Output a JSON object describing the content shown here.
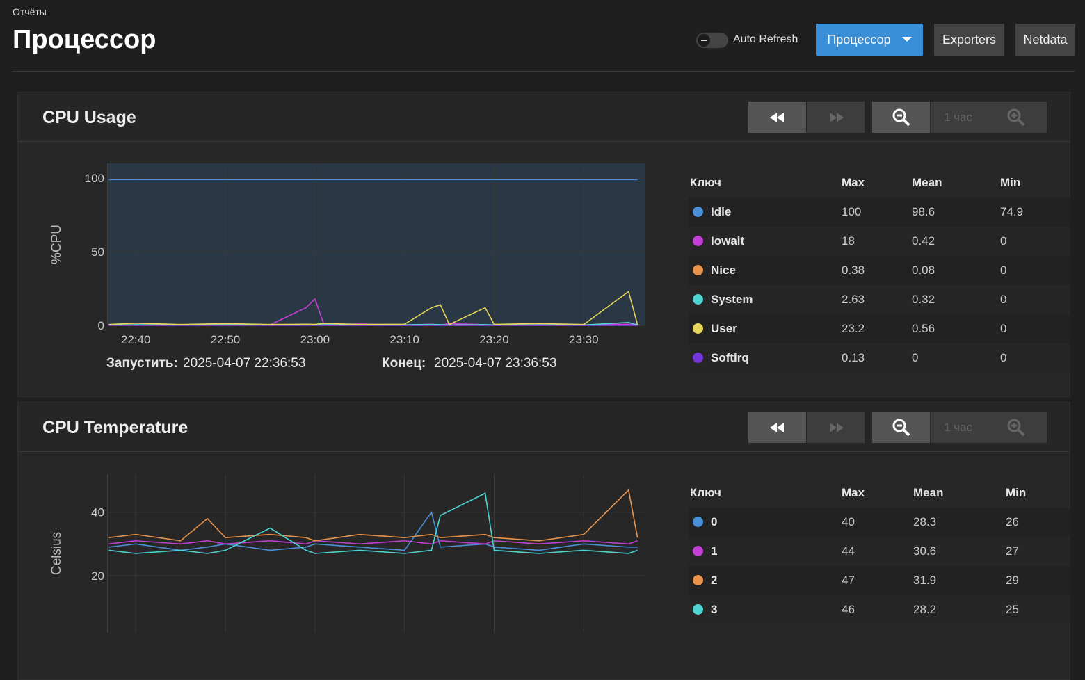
{
  "header": {
    "breadcrumb": "Отчёты",
    "title": "Процессор",
    "auto_refresh": "Auto Refresh",
    "buttons": [
      "Процессор",
      "Exporters",
      "Netdata"
    ]
  },
  "panels": [
    {
      "title": "CPU Usage",
      "range": "1 час",
      "table_headers": [
        "Ключ",
        "Max",
        "Mean",
        "Min"
      ],
      "start_label": "Запустить:",
      "start": "2025-04-07 22:36:53",
      "end_label": "Конец:",
      "end": "2025-04-07 23:36:53",
      "chart_data": {
        "type": "line",
        "y_label": "%CPU",
        "x": [
          "22:37",
          "22:40",
          "22:45",
          "22:50",
          "22:55",
          "22:59",
          "23:00",
          "23:01",
          "23:05",
          "23:10",
          "23:13",
          "23:14",
          "23:15",
          "23:19",
          "23:20",
          "23:25",
          "23:30",
          "23:35",
          "23:36"
        ],
        "xlim": [
          "22:36:53",
          "23:36:53"
        ],
        "xticks": [
          "22:40",
          "22:50",
          "23:00",
          "23:10",
          "23:20",
          "23:30"
        ],
        "ylim": [
          0,
          110
        ],
        "yticks": [
          0,
          50,
          100
        ],
        "grid": true,
        "series": [
          {
            "name": "Idle",
            "color": "#4a90d9",
            "values": [
              99,
              99,
              99,
              99,
              99,
              99,
              99,
              99,
              99,
              99,
              99,
              99,
              99,
              99,
              99,
              99,
              99,
              99,
              99
            ],
            "max": 100,
            "mean": 98.6,
            "min": 74.9
          },
          {
            "name": "Iowait",
            "color": "#c33fd6",
            "values": [
              0.5,
              1.5,
              0.4,
              1.2,
              0.4,
              12,
              18,
              0.5,
              1,
              0.4,
              0.8,
              0.4,
              1.2,
              0.5,
              0.4,
              1,
              0.5,
              0.8,
              0.4
            ],
            "max": 18,
            "mean": 0.42,
            "min": 0
          },
          {
            "name": "Nice",
            "color": "#e8934c",
            "values": [
              0.1,
              0.1,
              0.1,
              0.1,
              0.1,
              0.1,
              0.1,
              0.1,
              0.1,
              0.1,
              0.1,
              0.1,
              0.1,
              0.1,
              0.1,
              0.1,
              0.1,
              0.1,
              0.1
            ],
            "max": 0.38,
            "mean": 0.08,
            "min": 0
          },
          {
            "name": "System",
            "color": "#4fd4d4",
            "values": [
              0.3,
              0.5,
              0.3,
              0.6,
              0.3,
              0.4,
              0.3,
              0.5,
              0.3,
              0.4,
              0.6,
              0.5,
              0.3,
              0.5,
              0.3,
              0.4,
              0.3,
              2,
              0.3
            ],
            "max": 2.63,
            "mean": 0.32,
            "min": 0
          },
          {
            "name": "User",
            "color": "#e5d65a",
            "values": [
              0.6,
              1.5,
              0.6,
              1.2,
              0.6,
              0.8,
              0.7,
              1.4,
              0.6,
              0.8,
              12,
              14,
              0.6,
              12,
              0.7,
              1.3,
              0.6,
              23,
              0.6
            ],
            "max": 23.2,
            "mean": 0.56,
            "min": 0
          },
          {
            "name": "Softirq",
            "color": "#7535db",
            "values": [
              0,
              0,
              0,
              0,
              0,
              0,
              0,
              0,
              0,
              0,
              0,
              0,
              0,
              0,
              0,
              0,
              0,
              0,
              0
            ],
            "max": 0.13,
            "mean": 0,
            "min": 0
          }
        ]
      }
    },
    {
      "title": "CPU Temperature",
      "range": "1 час",
      "table_headers": [
        "Ключ",
        "Max",
        "Mean",
        "Min"
      ],
      "chart_data": {
        "type": "line",
        "y_label": "Celsius",
        "x": [
          "22:37",
          "22:40",
          "22:45",
          "22:48",
          "22:50",
          "22:55",
          "22:59",
          "23:00",
          "23:05",
          "23:10",
          "23:13",
          "23:14",
          "23:19",
          "23:20",
          "23:25",
          "23:30",
          "23:35",
          "23:36"
        ],
        "xlim": [
          "22:36:53",
          "23:36:53"
        ],
        "xticks": [
          "22:40",
          "22:50",
          "23:00",
          "23:10",
          "23:20",
          "23:30"
        ],
        "ylim": [
          2,
          52
        ],
        "yticks": [
          20,
          40
        ],
        "grid": true,
        "series": [
          {
            "name": "0",
            "color": "#4a90d9",
            "values": [
              29,
              30,
              28,
              29,
              30,
              28,
              29,
              30,
              29,
              28,
              40,
              29,
              30,
              29,
              28,
              30,
              29,
              29
            ],
            "max": 40,
            "mean": 28.3,
            "min": 26
          },
          {
            "name": "1",
            "color": "#c33fd6",
            "values": [
              30,
              31,
              30,
              31,
              30,
              31,
              30,
              31,
              30,
              31,
              30,
              31,
              30,
              31,
              30,
              31,
              30,
              31
            ],
            "max": 44,
            "mean": 30.6,
            "min": 27
          },
          {
            "name": "2",
            "color": "#e8934c",
            "values": [
              32,
              33,
              31,
              38,
              32,
              33,
              32,
              31,
              33,
              32,
              33,
              32,
              33,
              32,
              31,
              33,
              47,
              32
            ],
            "max": 47,
            "mean": 31.9,
            "min": 29
          },
          {
            "name": "3",
            "color": "#4fd4d4",
            "values": [
              28,
              27,
              28,
              27,
              28,
              35,
              28,
              27,
              28,
              27,
              28,
              39,
              46,
              28,
              27,
              28,
              27,
              28
            ],
            "max": 46,
            "mean": 28.2,
            "min": 25
          }
        ]
      }
    }
  ]
}
